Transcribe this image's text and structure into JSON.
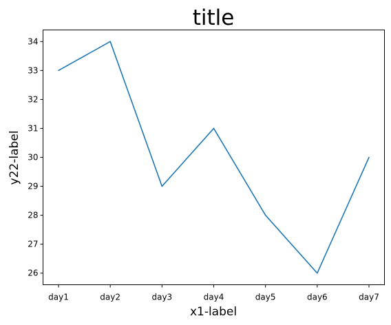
{
  "chart_data": {
    "type": "line",
    "title": "title",
    "xlabel": "x1-label",
    "ylabel": "y22-label",
    "categories": [
      "day1",
      "day2",
      "day3",
      "day4",
      "day5",
      "day6",
      "day7"
    ],
    "series": [
      {
        "values": [
          33,
          34,
          29,
          31,
          28,
          26,
          30
        ],
        "color": "#1f77b4"
      }
    ],
    "ylim": [
      25.6,
      34.4
    ],
    "yticks": [
      "26",
      "27",
      "28",
      "29",
      "30",
      "31",
      "32",
      "33",
      "34"
    ],
    "grid": false,
    "legend": "none"
  }
}
